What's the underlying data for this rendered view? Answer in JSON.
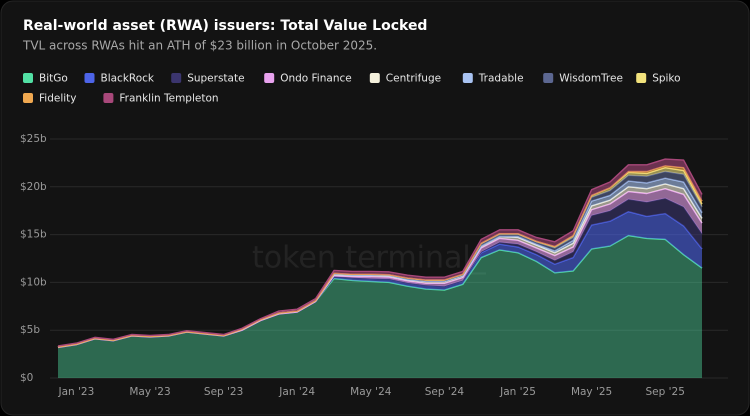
{
  "chart_data": {
    "type": "stacked_area",
    "title": "Real-world asset (RWA) issuers: Total Value Locked",
    "subtitle": "TVL across RWAs hit an ATH of $23 billion in October 2025.",
    "watermark": "token terminal_",
    "categories": [
      null,
      "Jan '23",
      null,
      null,
      null,
      "May '23",
      null,
      null,
      null,
      "Sep '23",
      null,
      null,
      null,
      "Jan '24",
      null,
      null,
      null,
      "May '24",
      null,
      null,
      null,
      "Sep '24",
      null,
      null,
      null,
      "Jan '25",
      null,
      null,
      null,
      "May '25",
      null,
      null,
      null,
      "Sep '25",
      null,
      null
    ],
    "ylim": [
      0,
      25
    ],
    "yticks": [
      {
        "value": 0,
        "label": "$0"
      },
      {
        "value": 5,
        "label": "$5b"
      },
      {
        "value": 10,
        "label": "$10b"
      },
      {
        "value": 15,
        "label": "$15b"
      },
      {
        "value": 20,
        "label": "$20b"
      },
      {
        "value": 25,
        "label": "$25b"
      }
    ],
    "grid": true,
    "legend": "top",
    "series": [
      {
        "name": "BitGo",
        "color": "#52e0a4",
        "values": [
          3.2,
          3.5,
          4.1,
          3.9,
          4.4,
          4.3,
          4.4,
          4.8,
          4.6,
          4.4,
          5.0,
          6.0,
          6.7,
          6.9,
          8.0,
          10.4,
          10.2,
          10.1,
          10.0,
          9.6,
          9.3,
          9.2,
          9.8,
          12.6,
          13.4,
          13.1,
          12.2,
          11.0,
          11.2,
          13.5,
          13.8,
          14.9,
          14.6,
          14.5,
          12.9,
          11.5
        ]
      },
      {
        "name": "BlackRock",
        "color": "#4d64e8",
        "values": [
          0,
          0,
          0,
          0,
          0,
          0,
          0,
          0,
          0,
          0,
          0,
          0,
          0,
          0,
          0,
          0.2,
          0.3,
          0.3,
          0.35,
          0.35,
          0.4,
          0.4,
          0.4,
          0.5,
          0.6,
          0.6,
          0.7,
          0.9,
          1.4,
          2.5,
          2.6,
          2.5,
          2.3,
          2.7,
          3.0,
          2.0
        ]
      },
      {
        "name": "Superstate",
        "color": "#3b356e",
        "values": [
          0,
          0,
          0,
          0,
          0,
          0,
          0,
          0,
          0,
          0,
          0,
          0,
          0,
          0,
          0,
          0,
          0,
          0,
          0,
          0,
          0,
          0,
          0,
          0.1,
          0.2,
          0.3,
          0.3,
          0.4,
          0.6,
          1.0,
          1.1,
          1.3,
          1.5,
          1.6,
          2.0,
          1.6
        ]
      },
      {
        "name": "Ondo Finance",
        "color": "#e8a2ee",
        "values": [
          0,
          0,
          0,
          0,
          0,
          0,
          0,
          0,
          0,
          0,
          0,
          0,
          0,
          0,
          0,
          0.1,
          0.1,
          0.2,
          0.2,
          0.2,
          0.2,
          0.3,
          0.3,
          0.4,
          0.4,
          0.4,
          0.4,
          0.5,
          0.5,
          0.6,
          0.7,
          0.8,
          0.9,
          1.0,
          1.3,
          1.1
        ]
      },
      {
        "name": "Centrifuge",
        "color": "#f4f0dc",
        "values": [
          0.05,
          0.05,
          0.05,
          0.05,
          0.05,
          0.05,
          0.05,
          0.05,
          0.05,
          0.05,
          0.1,
          0.1,
          0.1,
          0.1,
          0.1,
          0.15,
          0.15,
          0.15,
          0.15,
          0.15,
          0.2,
          0.2,
          0.2,
          0.2,
          0.2,
          0.3,
          0.3,
          0.3,
          0.4,
          0.4,
          0.4,
          0.5,
          0.5,
          0.5,
          0.6,
          0.5
        ]
      },
      {
        "name": "Tradable",
        "color": "#a9c3f2",
        "values": [
          0,
          0,
          0,
          0,
          0,
          0,
          0,
          0,
          0,
          0,
          0,
          0,
          0,
          0,
          0,
          0,
          0,
          0,
          0,
          0,
          0,
          0,
          0,
          0,
          0,
          0.1,
          0.1,
          0.2,
          0.3,
          0.5,
          0.5,
          0.6,
          0.6,
          0.6,
          0.7,
          0.6
        ]
      },
      {
        "name": "WisdomTree",
        "color": "#5c6791",
        "values": [
          0,
          0,
          0,
          0,
          0,
          0,
          0,
          0,
          0,
          0,
          0,
          0,
          0,
          0,
          0,
          0.1,
          0.1,
          0.1,
          0.1,
          0.1,
          0.1,
          0.1,
          0.1,
          0.2,
          0.2,
          0.2,
          0.2,
          0.3,
          0.3,
          0.4,
          0.5,
          0.6,
          0.7,
          0.7,
          0.8,
          0.6
        ]
      },
      {
        "name": "Spiko",
        "color": "#f2e27c",
        "values": [
          0,
          0,
          0,
          0,
          0,
          0,
          0,
          0,
          0,
          0,
          0,
          0,
          0,
          0,
          0,
          0,
          0,
          0,
          0,
          0.05,
          0.05,
          0.05,
          0.05,
          0.1,
          0.1,
          0.1,
          0.1,
          0.15,
          0.2,
          0.2,
          0.3,
          0.3,
          0.3,
          0.4,
          0.4,
          0.3
        ]
      },
      {
        "name": "Fidelity",
        "color": "#f0a850",
        "values": [
          0,
          0,
          0,
          0,
          0,
          0,
          0,
          0,
          0,
          0,
          0,
          0,
          0,
          0,
          0,
          0,
          0,
          0,
          0,
          0,
          0,
          0,
          0,
          0,
          0,
          0,
          0,
          0,
          0,
          0,
          0,
          0.1,
          0.2,
          0.2,
          0.3,
          0.3
        ]
      },
      {
        "name": "Franklin Templeton",
        "color": "#a8487a",
        "values": [
          0.1,
          0.1,
          0.1,
          0.1,
          0.1,
          0.1,
          0.1,
          0.1,
          0.1,
          0.1,
          0.1,
          0.1,
          0.2,
          0.2,
          0.2,
          0.3,
          0.3,
          0.3,
          0.3,
          0.3,
          0.3,
          0.3,
          0.3,
          0.4,
          0.4,
          0.4,
          0.4,
          0.5,
          0.5,
          0.6,
          0.6,
          0.7,
          0.7,
          0.7,
          0.8,
          0.7
        ]
      }
    ]
  }
}
